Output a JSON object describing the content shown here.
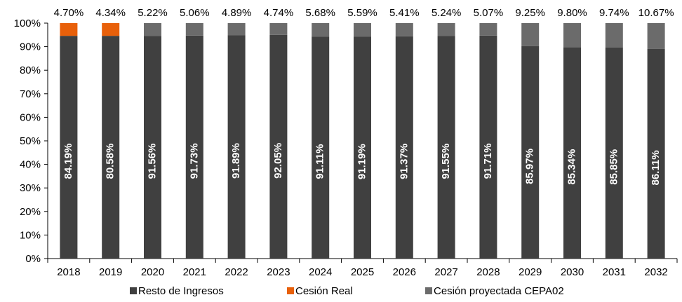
{
  "chart_data": {
    "type": "bar",
    "stacked": true,
    "percent_axis": true,
    "categories": [
      "2018",
      "2019",
      "2020",
      "2021",
      "2022",
      "2023",
      "2024",
      "2025",
      "2026",
      "2027",
      "2028",
      "2029",
      "2030",
      "2031",
      "2032"
    ],
    "series": [
      {
        "name": "Resto de Ingresos",
        "color": "#404040",
        "values": [
          94.6,
          94.6,
          94.6,
          94.7,
          94.9,
          95.0,
          94.3,
          94.2,
          94.4,
          94.5,
          94.7,
          90.2,
          89.8,
          89.7,
          89.0
        ],
        "labels": [
          "84.19%",
          "80.58%",
          "91.56%",
          "91.73%",
          "91.89%",
          "92.05%",
          "91.11%",
          "91.19%",
          "91.37%",
          "91.55%",
          "91.71%",
          "85.97%",
          "85.34%",
          "85.85%",
          "86.11%"
        ]
      },
      {
        "name": "Cesión Real",
        "color": "#E8600A",
        "values": [
          5.4,
          5.4,
          0,
          0,
          0,
          0,
          0,
          0,
          0,
          0,
          0,
          0,
          0,
          0,
          0
        ]
      },
      {
        "name": "Cesión proyectada CEPA02",
        "color": "#6B6B6B",
        "values": [
          0,
          0,
          5.4,
          5.3,
          5.1,
          5.0,
          5.7,
          5.8,
          5.6,
          5.5,
          5.3,
          9.8,
          10.2,
          10.3,
          11.0
        ]
      }
    ],
    "top_labels": [
      "4.70%",
      "4.34%",
      "5.22%",
      "5.06%",
      "4.89%",
      "4.74%",
      "5.68%",
      "5.59%",
      "5.41%",
      "5.24%",
      "5.07%",
      "9.25%",
      "9.80%",
      "9.74%",
      "10.67%"
    ],
    "y_ticks": [
      "0%",
      "10%",
      "20%",
      "30%",
      "40%",
      "50%",
      "60%",
      "70%",
      "80%",
      "90%",
      "100%"
    ],
    "ylim": [
      0,
      100
    ],
    "legend_position": "bottom",
    "grid": false
  }
}
